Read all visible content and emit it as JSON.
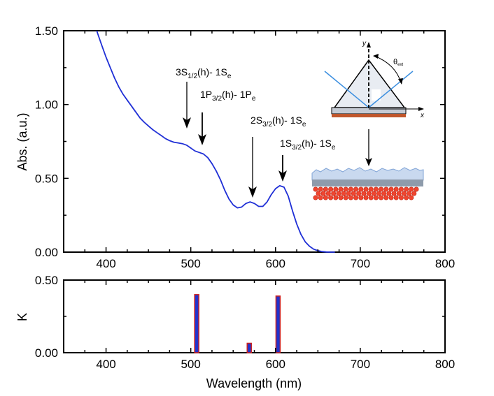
{
  "chart_data": [
    {
      "type": "line",
      "panel": "top",
      "ylabel": "Abs. (a.u.)",
      "xlim": [
        350,
        800
      ],
      "ylim": [
        0,
        1.5
      ],
      "x_ticks": [
        400,
        500,
        600,
        700,
        800
      ],
      "x_tick_labels": [
        "400",
        "500",
        "600",
        "700",
        "800"
      ],
      "y_ticks": [
        0,
        0.5,
        1.0,
        1.5
      ],
      "y_tick_labels": [
        "0.00",
        "0.50",
        "1.00",
        "1.50"
      ],
      "series": [
        {
          "name": "Absorbance",
          "color": "#1f2fd6",
          "x": [
            389,
            395,
            400,
            405,
            410,
            415,
            420,
            425,
            430,
            435,
            440,
            445,
            450,
            455,
            460,
            465,
            470,
            475,
            480,
            485,
            490,
            495,
            500,
            505,
            510,
            515,
            520,
            525,
            530,
            535,
            540,
            545,
            550,
            555,
            560,
            565,
            570,
            575,
            580,
            585,
            590,
            595,
            600,
            605,
            610,
            615,
            620,
            625,
            630,
            635,
            640,
            645,
            650,
            655,
            660,
            665,
            670
          ],
          "y": [
            1.5,
            1.4,
            1.32,
            1.25,
            1.18,
            1.12,
            1.07,
            1.03,
            0.99,
            0.95,
            0.91,
            0.88,
            0.855,
            0.83,
            0.81,
            0.79,
            0.77,
            0.755,
            0.745,
            0.74,
            0.735,
            0.725,
            0.705,
            0.685,
            0.675,
            0.665,
            0.64,
            0.6,
            0.55,
            0.49,
            0.42,
            0.36,
            0.32,
            0.3,
            0.305,
            0.33,
            0.34,
            0.33,
            0.31,
            0.31,
            0.34,
            0.39,
            0.43,
            0.45,
            0.44,
            0.38,
            0.28,
            0.19,
            0.12,
            0.07,
            0.04,
            0.02,
            0.01,
            0.004,
            0.001,
            0.0,
            0.0
          ]
        }
      ],
      "annotations": [
        {
          "main": "3S",
          "sub": "1/2",
          "rest": "(h)- 1S",
          "sub2": "e",
          "x": 498,
          "y": 0.83
        },
        {
          "main": "1P",
          "sub": "3/2",
          "rest": "(h)- 1P",
          "sub2": "e",
          "x": 513,
          "y": 0.72
        },
        {
          "main": "2S",
          "sub": "3/2",
          "rest": "(h)- 1S",
          "sub2": "e",
          "x": 573,
          "y": 0.36
        },
        {
          "main": "1S",
          "sub": "3/2",
          "rest": "(h)- 1S",
          "sub2": "e",
          "x": 605,
          "y": 0.48
        }
      ],
      "inset": {
        "angle_label": "θ",
        "angle_sub": "ext",
        "axis_y": "y",
        "axis_x": "x"
      }
    },
    {
      "type": "bar",
      "panel": "bottom",
      "xlabel": "Wavelength (nm)",
      "ylabel": "K",
      "xlim": [
        350,
        800
      ],
      "ylim": [
        0,
        0.5
      ],
      "x_ticks": [
        400,
        500,
        600,
        700,
        800
      ],
      "x_tick_labels": [
        "400",
        "500",
        "600",
        "700",
        "800"
      ],
      "y_ticks": [
        0,
        0.5
      ],
      "y_tick_labels": [
        "0.00",
        "0.50"
      ],
      "bar_fill": "#2233cc",
      "bar_edge": "#cc2222",
      "x": [
        507,
        569,
        603
      ],
      "values": [
        0.4,
        0.065,
        0.39
      ]
    }
  ]
}
